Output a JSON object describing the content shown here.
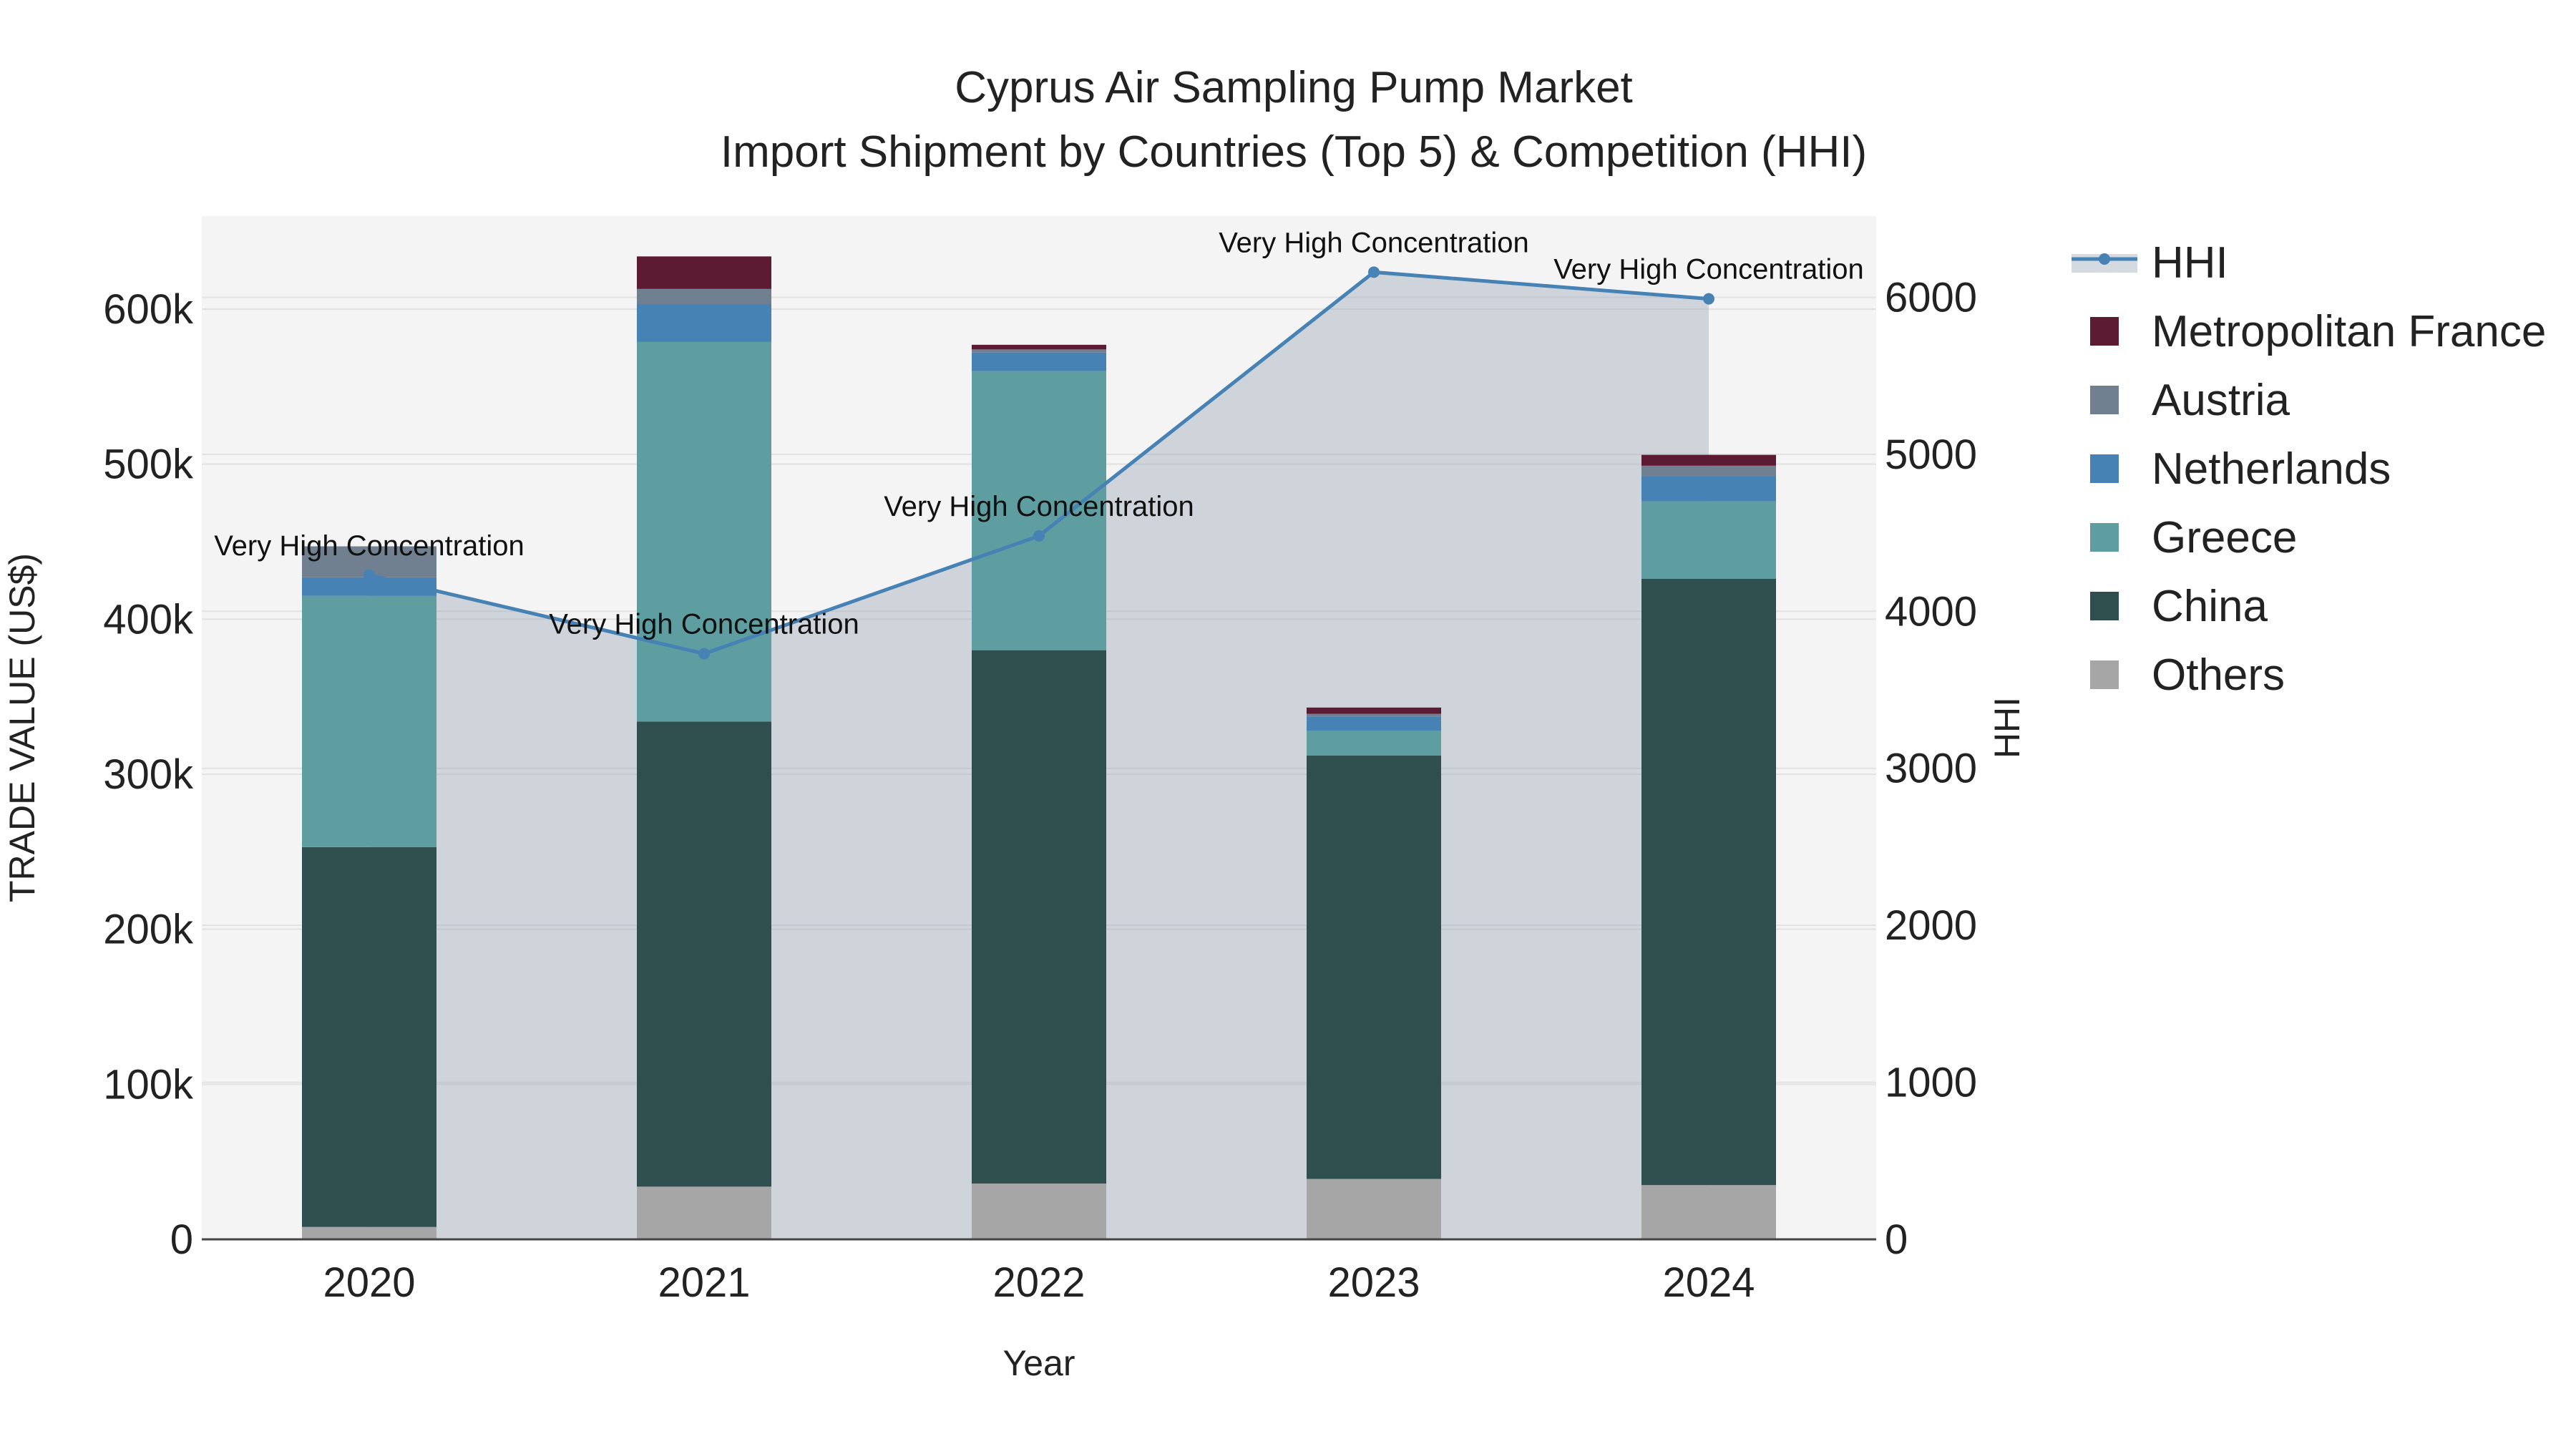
{
  "chart_data": {
    "type": "bar",
    "title_line1": "Cyprus Air Sampling Pump Market",
    "title_line2": "Import Shipment by Countries (Top 5) & Competition (HHI)",
    "xlabel": "Year",
    "ylabel_left": "TRADE VALUE (US$)",
    "ylabel_right": "HHI",
    "categories": [
      "2020",
      "2021",
      "2022",
      "2023",
      "2024"
    ],
    "ylim_left": [
      0,
      660000
    ],
    "ylim_right": [
      0,
      6517
    ],
    "yticks_left": [
      0,
      100000,
      200000,
      300000,
      400000,
      500000,
      600000
    ],
    "yticks_left_labels": [
      "0",
      "100k",
      "200k",
      "300k",
      "400k",
      "500k",
      "600k"
    ],
    "yticks_right": [
      0,
      1000,
      2000,
      3000,
      4000,
      5000,
      6000
    ],
    "yticks_right_labels": [
      "0",
      "1000",
      "2000",
      "3000",
      "4000",
      "5000",
      "6000"
    ],
    "series": [
      {
        "name": "Others",
        "color": "#a6a6a6",
        "values": [
          8000,
          34000,
          36000,
          39000,
          35000
        ]
      },
      {
        "name": "China",
        "color": "#2f4f4f",
        "values": [
          245000,
          300000,
          344000,
          273000,
          391000
        ]
      },
      {
        "name": "Greece",
        "color": "#5f9ea0",
        "values": [
          162000,
          245000,
          180000,
          16000,
          50000
        ]
      },
      {
        "name": "Netherlands",
        "color": "#4682b4",
        "values": [
          12000,
          24000,
          12000,
          9000,
          16000
        ]
      },
      {
        "name": "Austria",
        "color": "#708090",
        "values": [
          20000,
          10000,
          2000,
          2000,
          7000
        ]
      },
      {
        "name": "Metropolitan France",
        "color": "#5c1a33",
        "values": [
          0,
          21000,
          3000,
          4000,
          7000
        ]
      }
    ],
    "hhi": {
      "name": "HHI",
      "color": "#4682b4",
      "values": [
        4230,
        3730,
        4480,
        6160,
        5990
      ],
      "annotations": [
        "Very High Concentration",
        "Very High Concentration",
        "Very High Concentration",
        "Very High Concentration",
        "Very High Concentration"
      ]
    },
    "legend": [
      "HHI",
      "Metropolitan France",
      "Austria",
      "Netherlands",
      "Greece",
      "China",
      "Others"
    ],
    "legend_position": "right"
  }
}
